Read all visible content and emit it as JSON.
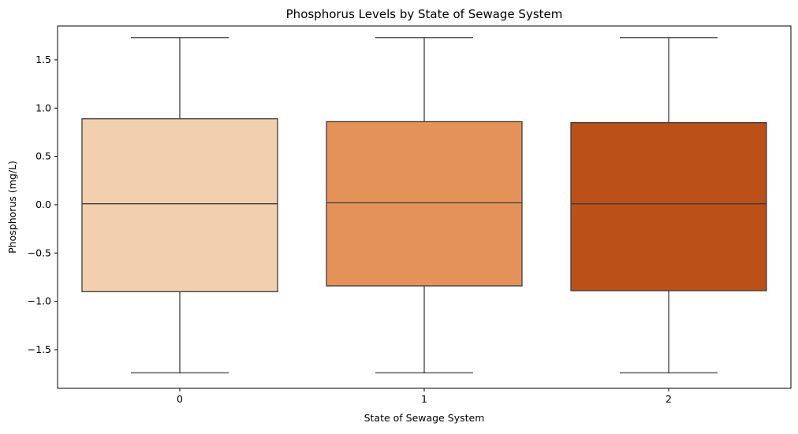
{
  "chart_data": {
    "type": "box",
    "title": "Phosphorus Levels by State of Sewage System",
    "xlabel": "State of Sewage System",
    "ylabel": "Phosphorus (mg/L)",
    "categories": [
      "0",
      "1",
      "2"
    ],
    "ylim": [
      -1.9,
      1.85
    ],
    "y_ticks": [
      -1.5,
      -1.0,
      -0.5,
      0.0,
      0.5,
      1.0,
      1.5
    ],
    "y_tick_labels": [
      "−1.5",
      "−1.0",
      "−0.5",
      "0.0",
      "0.5",
      "1.0",
      "1.5"
    ],
    "boxes": [
      {
        "category": "0",
        "whisker_low": -1.74,
        "q1": -0.9,
        "median": 0.01,
        "q3": 0.89,
        "whisker_high": 1.73,
        "color": "#f2cfad"
      },
      {
        "category": "1",
        "whisker_low": -1.74,
        "q1": -0.84,
        "median": 0.02,
        "q3": 0.86,
        "whisker_high": 1.73,
        "color": "#e59258"
      },
      {
        "category": "2",
        "whisker_low": -1.74,
        "q1": -0.89,
        "median": 0.01,
        "q3": 0.85,
        "whisker_high": 1.73,
        "color": "#bb5019"
      }
    ],
    "grid": false,
    "line_color": "#3d3d3d"
  }
}
